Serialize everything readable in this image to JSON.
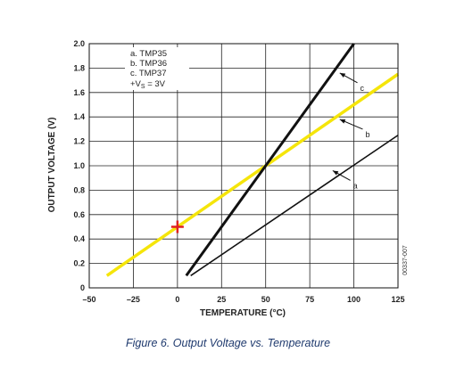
{
  "chart_data": {
    "type": "line",
    "title": "",
    "xlabel": "TEMPERATURE (°C)",
    "ylabel": "OUTPUT VOLTAGE (V)",
    "xlim": [
      -50,
      125
    ],
    "ylim": [
      0,
      2.0
    ],
    "xticks": [
      -50,
      -25,
      0,
      25,
      50,
      75,
      100,
      125
    ],
    "yticks": [
      0,
      0.2,
      0.4,
      0.6,
      0.8,
      1.0,
      1.2,
      1.4,
      1.6,
      1.8,
      2.0
    ],
    "xtick_labels": [
      "–50",
      "–25",
      "0",
      "25",
      "50",
      "75",
      "100",
      "125"
    ],
    "ytick_labels": [
      "0",
      "0.2",
      "0.4",
      "0.6",
      "0.8",
      "1.0",
      "1.2",
      "1.4",
      "1.6",
      "1.8",
      "2.0"
    ],
    "grid": true,
    "legend": {
      "placement": "top-left",
      "lines": [
        "a. TMP35",
        "b. TMP36",
        "c. TMP37"
      ],
      "supply_prefix": "+V",
      "supply_sub": "S",
      "supply_suffix": " = 3V"
    },
    "series": [
      {
        "name": "a",
        "color": "#111111",
        "x": [
          7.5,
          125
        ],
        "y": [
          0.1,
          1.25
        ]
      },
      {
        "name": "b",
        "color": "#f5e50a",
        "x": [
          -40,
          125
        ],
        "y": [
          0.1,
          1.75
        ]
      },
      {
        "name": "c",
        "color": "#111111",
        "x": [
          5,
          100
        ],
        "y": [
          0.1,
          2.0
        ]
      }
    ],
    "annotations": [
      {
        "label": "a",
        "from": [
          98,
          0.88
        ],
        "to": [
          88,
          0.96
        ]
      },
      {
        "label": "b",
        "from": [
          105,
          1.3
        ],
        "to": [
          92,
          1.38
        ]
      },
      {
        "label": "c",
        "from": [
          102,
          1.68
        ],
        "to": [
          92,
          1.76
        ]
      }
    ],
    "marker": {
      "symbol": "+",
      "color": "#e02020",
      "x": 0,
      "y": 0.5
    }
  },
  "figure_id": "00337-007",
  "caption": "Figure 6. Output Voltage vs. Temperature"
}
